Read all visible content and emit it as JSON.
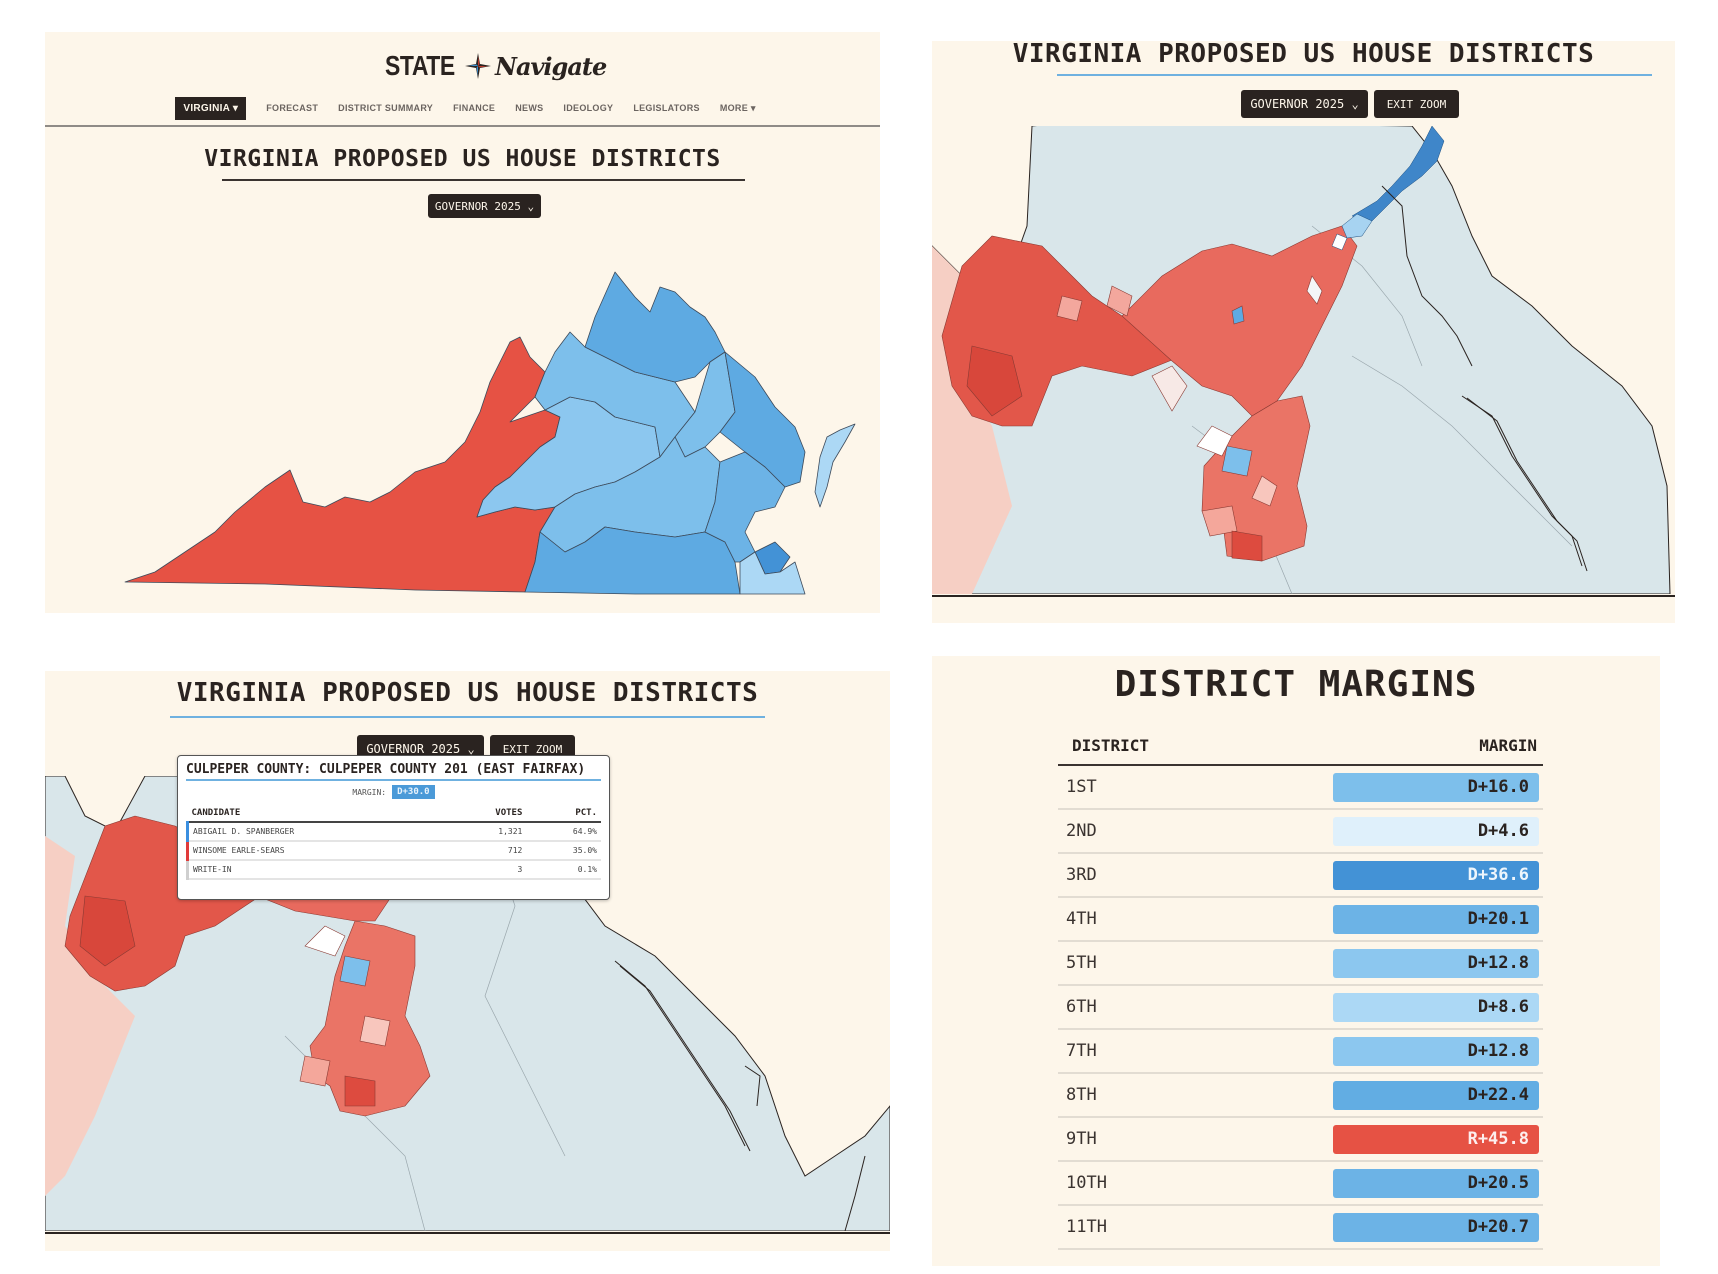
{
  "colors": {
    "background": "#fdf6ea",
    "dark": "#2a2320",
    "accent_blue_rule": "#6fb1e0",
    "dem_strong": "#4392d6",
    "dem_medium": "#5eaae2",
    "dem_light": "#8cc7ef",
    "dem_pale": "#dff0fb",
    "rep": "#e65244",
    "dim_land": "#d9e6ea"
  },
  "header": {
    "logo_state": "STATE",
    "logo_navigate": "Navigate",
    "nav": {
      "state_selector": "VIRGINIA ▾",
      "items": [
        "FORECAST",
        "DISTRICT SUMMARY",
        "FINANCE",
        "NEWS",
        "IDEOLOGY",
        "LEGISLATORS",
        "MORE ▾"
      ]
    }
  },
  "page": {
    "title": "VIRGINIA PROPOSED US HOUSE DISTRICTS",
    "election_select": "GOVERNOR 2025 ⌄",
    "exit_zoom": "EXIT ZOOM"
  },
  "tooltip": {
    "title": "CULPEPER COUNTY: CULPEPER COUNTY 201 (EAST FAIRFAX)",
    "margin_label": "MARGIN:",
    "margin_value": "D+30.0",
    "headers": [
      "CANDIDATE",
      "VOTES",
      "PCT."
    ],
    "rows": [
      {
        "candidate": "ABIGAIL D. SPANBERGER",
        "votes": "1,321",
        "pct": "64.9%",
        "color": "#3b8fe0"
      },
      {
        "candidate": "WINSOME EARLE-SEARS",
        "votes": "712",
        "pct": "35.0%",
        "color": "#e03b3b"
      },
      {
        "candidate": "WRITE-IN",
        "votes": "3",
        "pct": "0.1%",
        "color": "#cfcfcf"
      }
    ]
  },
  "margins": {
    "title": "DISTRICT MARGINS",
    "headers": [
      "DISTRICT",
      "MARGIN"
    ],
    "rows": [
      {
        "district": "1ST",
        "margin": "D+16.0",
        "bg": "#7dbfeb",
        "fg": "#2a2320"
      },
      {
        "district": "2ND",
        "margin": "D+4.6",
        "bg": "#dff0fb",
        "fg": "#2a2320"
      },
      {
        "district": "3RD",
        "margin": "D+36.6",
        "bg": "#4392d6",
        "fg": "#eef6fc"
      },
      {
        "district": "4TH",
        "margin": "D+20.1",
        "bg": "#6cb3e6",
        "fg": "#2a2320"
      },
      {
        "district": "5TH",
        "margin": "D+12.8",
        "bg": "#8cc7ef",
        "fg": "#2a2320"
      },
      {
        "district": "6TH",
        "margin": "D+8.6",
        "bg": "#acd8f5",
        "fg": "#2a2320"
      },
      {
        "district": "7TH",
        "margin": "D+12.8",
        "bg": "#8cc7ef",
        "fg": "#2a2320"
      },
      {
        "district": "8TH",
        "margin": "D+22.4",
        "bg": "#62ade3",
        "fg": "#2a2320"
      },
      {
        "district": "9TH",
        "margin": "R+45.8",
        "bg": "#e65244",
        "fg": "#fdeeee"
      },
      {
        "district": "10TH",
        "margin": "D+20.5",
        "bg": "#6cb3e6",
        "fg": "#2a2320"
      },
      {
        "district": "11TH",
        "margin": "D+20.7",
        "bg": "#6cb3e6",
        "fg": "#2a2320"
      }
    ]
  }
}
